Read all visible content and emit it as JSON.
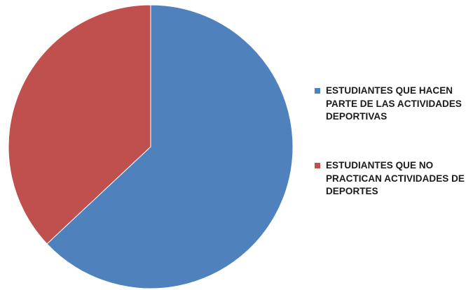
{
  "chart_data": {
    "type": "pie",
    "title": "",
    "start_angle_deg": 0,
    "direction": "clockwise",
    "legend_position": "right",
    "slices": [
      {
        "label": "ESTUDIANTES QUE HACEN PARTE DE LAS ACTIVIDADES DEPORTIVAS",
        "value": 63,
        "color": "#4f81bd"
      },
      {
        "label": "ESTUDIANTES QUE NO PRACTICAN ACTIVIDADES DE DEPORTES",
        "value": 37,
        "color": "#c0504d"
      }
    ]
  }
}
